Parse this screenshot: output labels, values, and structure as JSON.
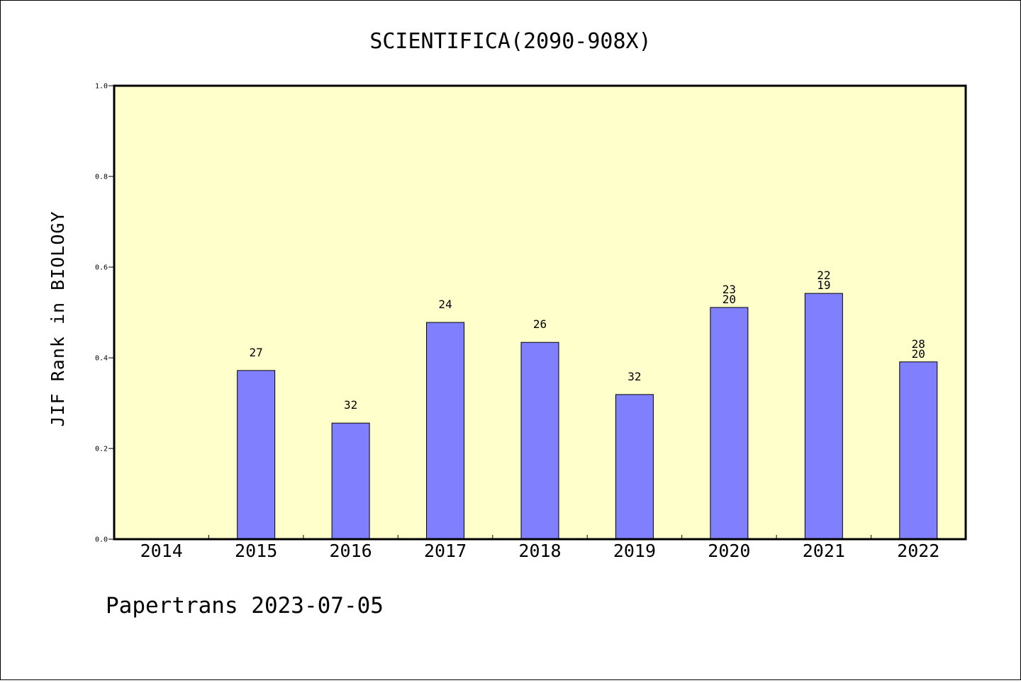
{
  "chart_data": {
    "type": "bar",
    "title": "SCIENTIFICA(2090-908X)",
    "ylabel": "JIF Rank in BIOLOGY",
    "xlabel": "",
    "ylim": [
      0,
      1.0
    ],
    "yticks": [
      "0.0",
      "0.2",
      "0.4",
      "0.6",
      "0.8",
      "1.0"
    ],
    "categories": [
      "2014",
      "2015",
      "2016",
      "2017",
      "2018",
      "2019",
      "2020",
      "2021",
      "2022"
    ],
    "values": [
      null,
      0.372,
      0.256,
      0.478,
      0.434,
      0.319,
      0.511,
      0.542,
      0.391
    ],
    "labels": [
      [],
      [
        "27"
      ],
      [
        "32"
      ],
      [
        "24"
      ],
      [
        "26"
      ],
      [
        "32"
      ],
      [
        "23",
        "20"
      ],
      [
        "22",
        "19"
      ],
      [
        "28",
        "20"
      ]
    ],
    "grid": false,
    "legend": "none",
    "colors": {
      "plot_background": "#ffffcc",
      "bar_fill": "#8080ff",
      "bar_stroke": "#000000"
    }
  },
  "footer": {
    "text": "Papertrans 2023-07-05"
  }
}
